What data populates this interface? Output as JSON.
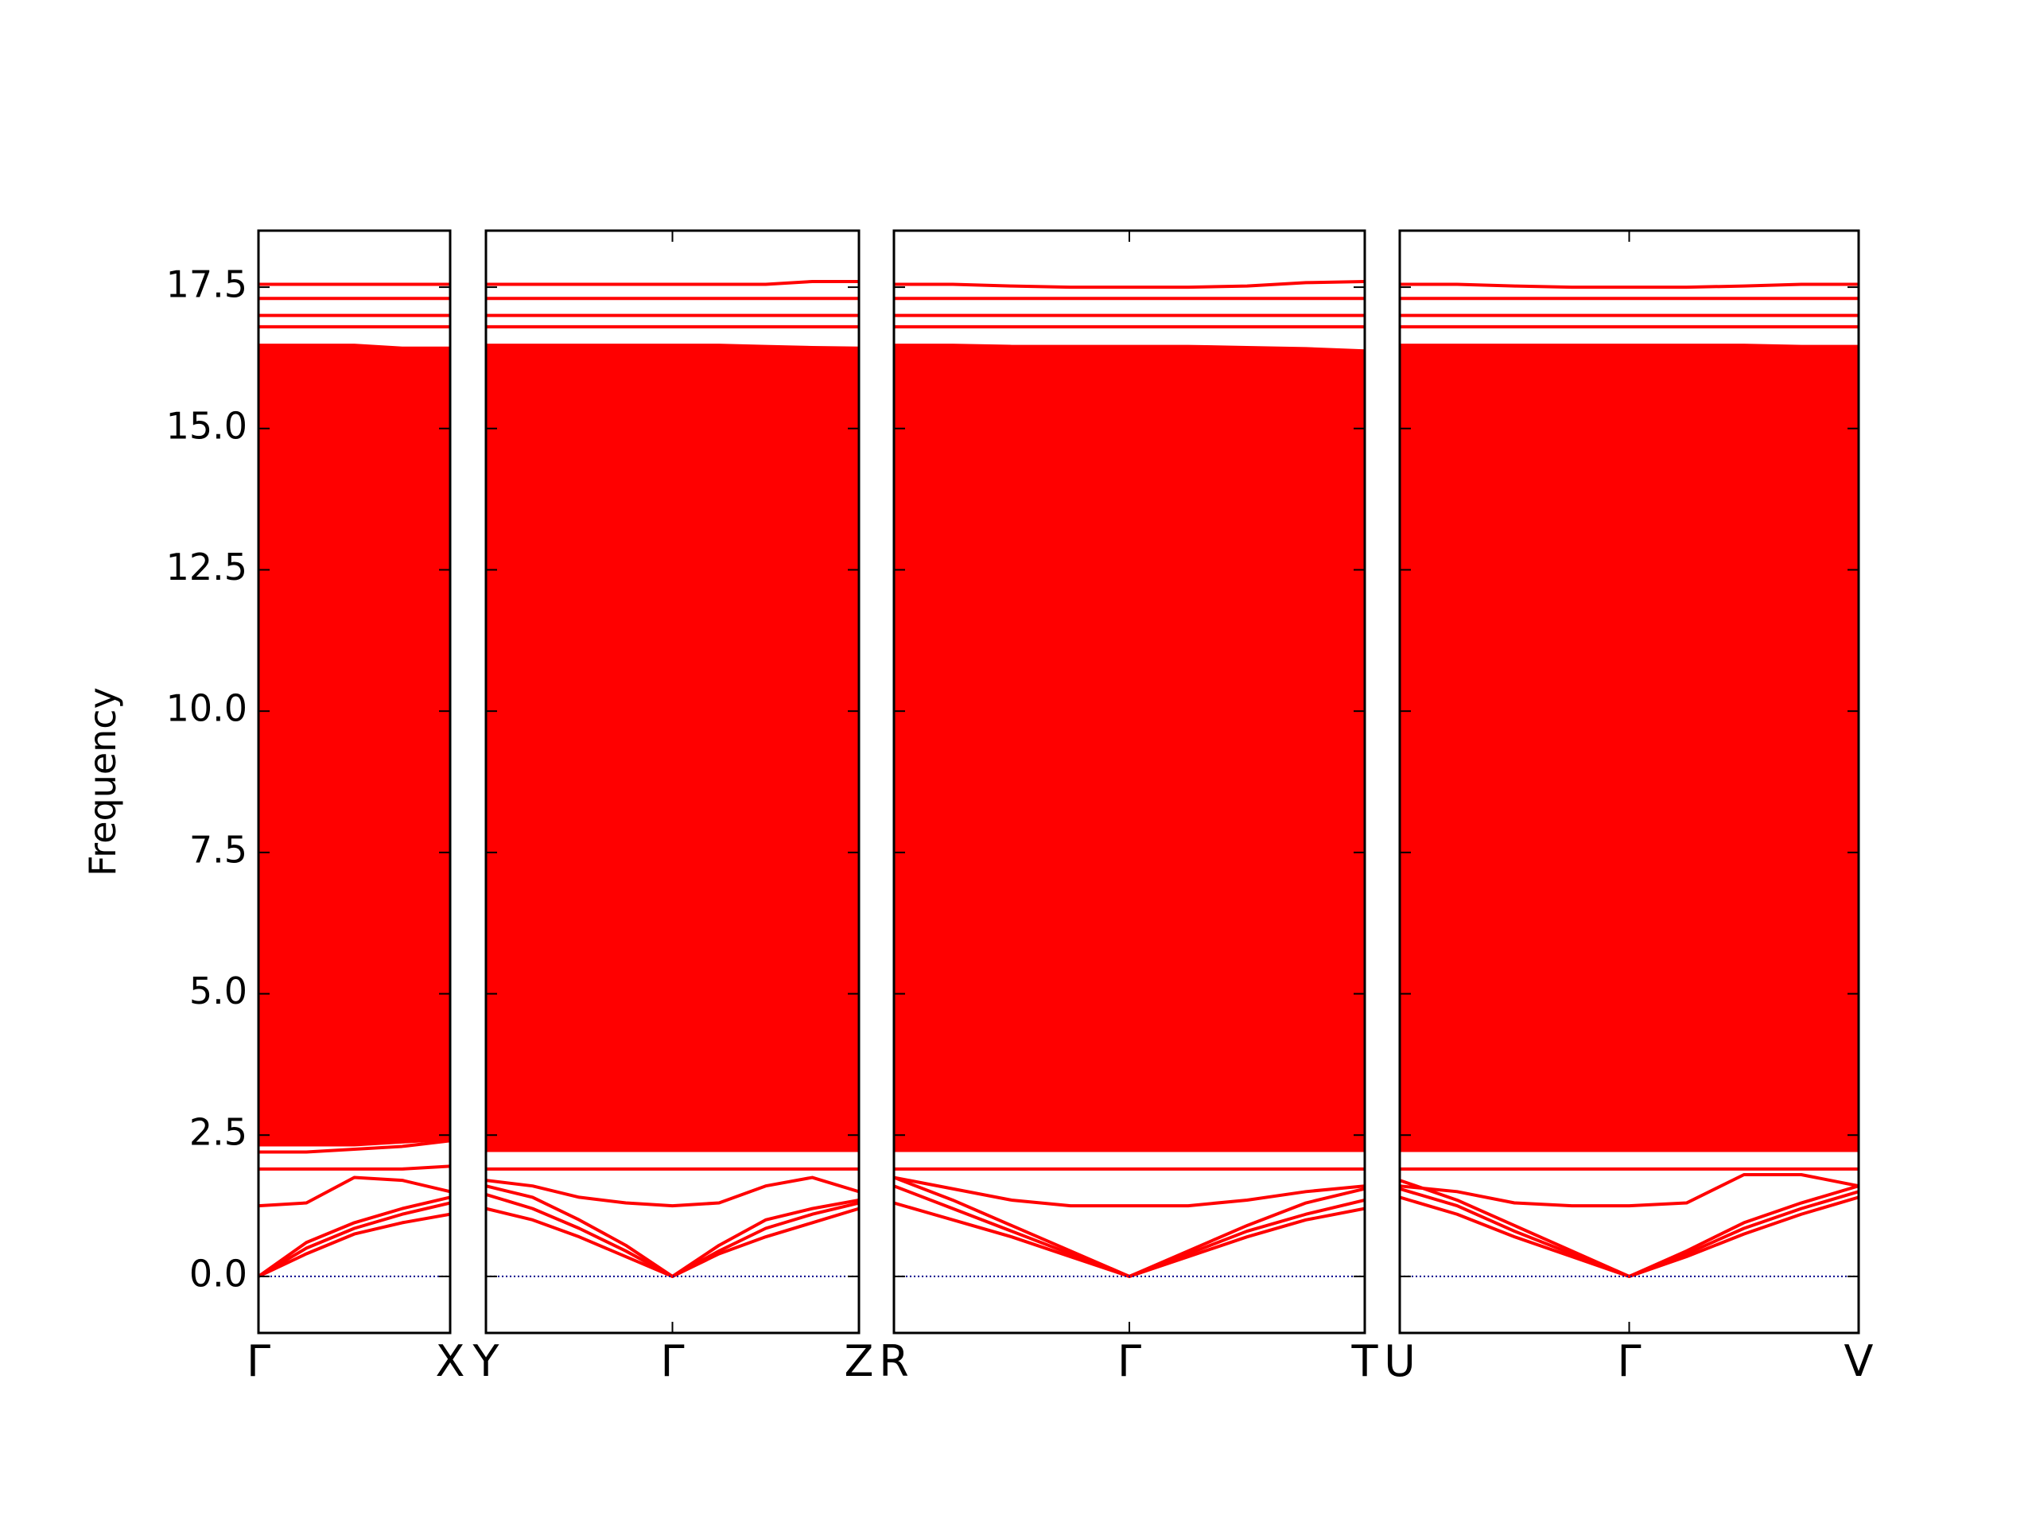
{
  "chart_data": [
    {
      "type": "line",
      "ylabel": "Frequency",
      "color": "#ff0000",
      "ylim": [
        -1,
        18.5
      ],
      "yticks": [
        {
          "value": 0,
          "label": "0.0"
        },
        2.5,
        {
          "value": 5,
          "label": "5.0"
        },
        7.5,
        {
          "value": 10,
          "label": "10.0"
        },
        12.5,
        {
          "value": 15,
          "label": "15.0"
        },
        17.5
      ],
      "zero_line": {
        "value": 0,
        "color": "#00008b"
      },
      "xlim": [
        0,
        1
      ],
      "xticks": [
        {
          "value": 0,
          "label": "Γ"
        },
        {
          "value": 1,
          "label": "X"
        }
      ],
      "x": [
        0,
        0.25,
        0.5,
        0.75,
        1
      ],
      "band_fill": {
        "lower": [
          2.3,
          2.3,
          2.3,
          2.35,
          2.4
        ],
        "upper": [
          16.5,
          16.5,
          16.5,
          16.45,
          16.45
        ]
      },
      "bands": [
        [
          17.55,
          17.55,
          17.55,
          17.55,
          17.55
        ],
        [
          17.3,
          17.3,
          17.3,
          17.3,
          17.3
        ],
        [
          17.0,
          17.0,
          17.0,
          17.0,
          17.0
        ],
        [
          16.8,
          16.8,
          16.8,
          16.8,
          16.8
        ],
        [
          1.9,
          1.9,
          1.9,
          1.9,
          1.95
        ],
        [
          2.2,
          2.2,
          2.25,
          2.3,
          2.4
        ],
        [
          1.25,
          1.3,
          1.75,
          1.7,
          1.5
        ],
        [
          0,
          0.6,
          0.95,
          1.2,
          1.4
        ],
        [
          0,
          0.5,
          0.85,
          1.1,
          1.3
        ],
        [
          0,
          0.4,
          0.75,
          0.95,
          1.1
        ]
      ]
    },
    {
      "type": "line",
      "color": "#ff0000",
      "ylim": [
        -1,
        18.5
      ],
      "zero_line": {
        "value": 0,
        "color": "#00008b"
      },
      "xlim": [
        0,
        2
      ],
      "xticks": [
        {
          "value": 0,
          "label": "Y"
        },
        {
          "value": 1,
          "label": "Γ"
        },
        {
          "value": 2,
          "label": "Z"
        }
      ],
      "x": [
        0,
        0.25,
        0.5,
        0.75,
        1,
        1.25,
        1.5,
        1.75,
        2
      ],
      "band_fill": {
        "lower": [
          2.2,
          2.2,
          2.2,
          2.2,
          2.2,
          2.2,
          2.2,
          2.2,
          2.2
        ],
        "upper": [
          16.5,
          16.5,
          16.5,
          16.5,
          16.5,
          16.5,
          16.48,
          16.46,
          16.45
        ]
      },
      "bands": [
        [
          17.55,
          17.55,
          17.55,
          17.55,
          17.55,
          17.55,
          17.55,
          17.6,
          17.6
        ],
        [
          17.3,
          17.3,
          17.3,
          17.3,
          17.3,
          17.3,
          17.3,
          17.3,
          17.3
        ],
        [
          17.0,
          17.0,
          17.0,
          17.0,
          17.0,
          17.0,
          17.0,
          17.0,
          17.0
        ],
        [
          16.8,
          16.8,
          16.8,
          16.8,
          16.8,
          16.8,
          16.8,
          16.8,
          16.8
        ],
        [
          1.9,
          1.9,
          1.9,
          1.9,
          1.9,
          1.9,
          1.9,
          1.9,
          1.9
        ],
        [
          1.7,
          1.6,
          1.4,
          1.3,
          1.25,
          1.3,
          1.6,
          1.75,
          1.5
        ],
        [
          1.6,
          1.4,
          1.0,
          0.55,
          0,
          0.55,
          1.0,
          1.2,
          1.35
        ],
        [
          1.45,
          1.2,
          0.85,
          0.45,
          0,
          0.45,
          0.85,
          1.1,
          1.3
        ],
        [
          1.2,
          1.0,
          0.7,
          0.35,
          0,
          0.4,
          0.7,
          0.95,
          1.2
        ]
      ]
    },
    {
      "type": "line",
      "color": "#ff0000",
      "ylim": [
        -1,
        18.5
      ],
      "zero_line": {
        "value": 0,
        "color": "#00008b"
      },
      "xlim": [
        0,
        2
      ],
      "xticks": [
        {
          "value": 0,
          "label": "R"
        },
        {
          "value": 1,
          "label": "Γ"
        },
        {
          "value": 2,
          "label": "T"
        }
      ],
      "x": [
        0,
        0.25,
        0.5,
        0.75,
        1,
        1.25,
        1.5,
        1.75,
        2
      ],
      "band_fill": {
        "lower": [
          2.2,
          2.2,
          2.2,
          2.2,
          2.2,
          2.2,
          2.2,
          2.2,
          2.2
        ],
        "upper": [
          16.5,
          16.5,
          16.48,
          16.48,
          16.48,
          16.48,
          16.46,
          16.44,
          16.4
        ]
      },
      "bands": [
        [
          17.55,
          17.55,
          17.52,
          17.5,
          17.5,
          17.5,
          17.52,
          17.58,
          17.6
        ],
        [
          17.3,
          17.3,
          17.3,
          17.3,
          17.3,
          17.3,
          17.3,
          17.3,
          17.3
        ],
        [
          17.0,
          17.0,
          17.0,
          17.0,
          17.0,
          17.0,
          17.0,
          17.0,
          17.0
        ],
        [
          16.8,
          16.8,
          16.8,
          16.8,
          16.8,
          16.8,
          16.8,
          16.8,
          16.8
        ],
        [
          1.9,
          1.9,
          1.9,
          1.9,
          1.9,
          1.9,
          1.9,
          1.9,
          1.9
        ],
        [
          1.75,
          1.55,
          1.35,
          1.25,
          1.25,
          1.25,
          1.35,
          1.5,
          1.6
        ],
        [
          1.75,
          1.35,
          0.9,
          0.45,
          0,
          0.45,
          0.9,
          1.3,
          1.55
        ],
        [
          1.6,
          1.2,
          0.8,
          0.4,
          0,
          0.4,
          0.8,
          1.1,
          1.35
        ],
        [
          1.3,
          1.0,
          0.7,
          0.35,
          0,
          0.35,
          0.7,
          1.0,
          1.2
        ]
      ]
    },
    {
      "type": "line",
      "color": "#ff0000",
      "ylim": [
        -1,
        18.5
      ],
      "zero_line": {
        "value": 0,
        "color": "#00008b"
      },
      "xlim": [
        0,
        2
      ],
      "xticks": [
        {
          "value": 0,
          "label": "U"
        },
        {
          "value": 1,
          "label": "Γ"
        },
        {
          "value": 2,
          "label": "V"
        }
      ],
      "x": [
        0,
        0.25,
        0.5,
        0.75,
        1,
        1.25,
        1.5,
        1.75,
        2
      ],
      "band_fill": {
        "lower": [
          2.2,
          2.2,
          2.2,
          2.2,
          2.2,
          2.2,
          2.2,
          2.2,
          2.2
        ],
        "upper": [
          16.5,
          16.5,
          16.5,
          16.5,
          16.5,
          16.5,
          16.5,
          16.48,
          16.48
        ]
      },
      "bands": [
        [
          17.55,
          17.55,
          17.52,
          17.5,
          17.5,
          17.5,
          17.52,
          17.55,
          17.55
        ],
        [
          17.3,
          17.3,
          17.3,
          17.3,
          17.3,
          17.3,
          17.3,
          17.3,
          17.3
        ],
        [
          17.0,
          17.0,
          17.0,
          17.0,
          17.0,
          17.0,
          17.0,
          17.0,
          17.0
        ],
        [
          16.8,
          16.8,
          16.8,
          16.8,
          16.8,
          16.8,
          16.8,
          16.8,
          16.8
        ],
        [
          1.9,
          1.9,
          1.9,
          1.9,
          1.9,
          1.9,
          1.9,
          1.9,
          1.9
        ],
        [
          1.6,
          1.5,
          1.3,
          1.25,
          1.25,
          1.3,
          1.8,
          1.8,
          1.6
        ],
        [
          1.7,
          1.35,
          0.9,
          0.45,
          0,
          0.45,
          0.95,
          1.3,
          1.6
        ],
        [
          1.55,
          1.25,
          0.8,
          0.4,
          0,
          0.4,
          0.85,
          1.2,
          1.5
        ],
        [
          1.4,
          1.1,
          0.7,
          0.35,
          0,
          0.35,
          0.75,
          1.1,
          1.4
        ]
      ]
    }
  ]
}
